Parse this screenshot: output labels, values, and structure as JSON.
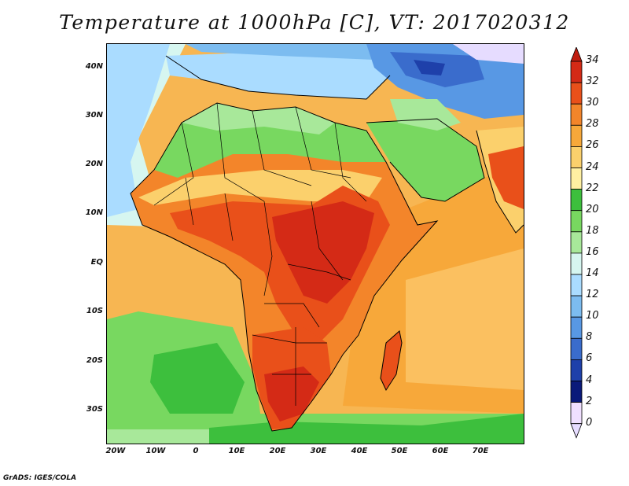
{
  "title": "Temperature at 1000hPa [C], VT: 2017020312",
  "credit": "GrADS: IGES/COLA",
  "axes": {
    "lat_labels": [
      "40N",
      "30N",
      "20N",
      "10N",
      "EQ",
      "10S",
      "20S",
      "30S"
    ],
    "lon_labels": [
      "20W",
      "10W",
      "0",
      "10E",
      "20E",
      "30E",
      "40E",
      "50E",
      "60E",
      "70E"
    ]
  },
  "colorbar": {
    "levels": [
      "34",
      "32",
      "30",
      "28",
      "26",
      "24",
      "22",
      "20",
      "18",
      "16",
      "14",
      "12",
      "10",
      "8",
      "6",
      "4",
      "2",
      "0"
    ],
    "colors": [
      "#d42a16",
      "#e9501a",
      "#f3852a",
      "#f7a83a",
      "#fbd06c",
      "#fff0a2",
      "#3dbf3d",
      "#78d860",
      "#a8e89a",
      "#d6f6f0",
      "#aadcff",
      "#7cbcf0",
      "#5898e4",
      "#3a6ccc",
      "#1e40aa",
      "#0a1a7a",
      "#f0e0ff"
    ],
    "over_color": "#c01e10",
    "under_color": "#e6dcff"
  },
  "map": {
    "region": "Africa",
    "lon_range": [
      -22,
      80
    ],
    "lat_range": [
      -37,
      45
    ],
    "colors": {
      "ocean_warm": "#f7b652",
      "ocean_south": "#3dbf3d",
      "atlantic_cool": "#3dbf3d",
      "sahara_north": "#a8e89a",
      "med": "#aadcff",
      "mideast_cold": "#3a6ccc",
      "central_hot": "#d42a16",
      "south_hot": "#e9501a",
      "coastline": "#000000"
    }
  }
}
